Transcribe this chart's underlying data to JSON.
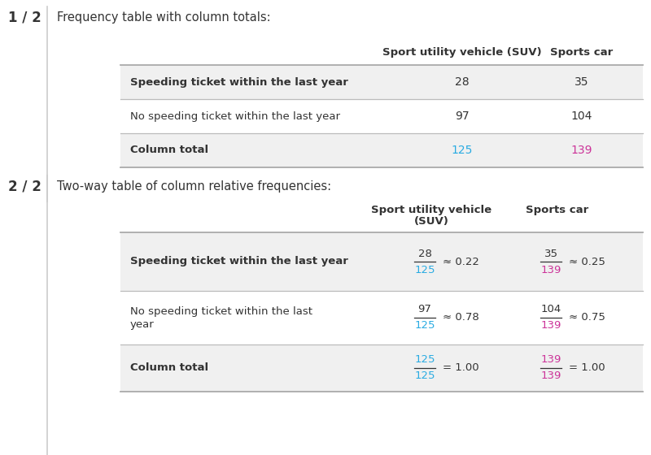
{
  "title1": "1 / 2",
  "title2": "2 / 2",
  "subtitle1": "Frequency table with column totals:",
  "subtitle2": "Two-way table of column relative frequencies:",
  "col_headers1": [
    "Sport utility vehicle (SUV)",
    "Sports car"
  ],
  "col_headers2_line1": "Sport utility vehicle",
  "col_headers2_line2": "(SUV)",
  "col_header2_sc": "Sports car",
  "row_labels1": [
    "Speeding ticket within the last year",
    "No speeding ticket within the last year",
    "Column total"
  ],
  "row_labels2_line1": [
    "Speeding ticket within the last year",
    "No speeding ticket within the last",
    "Column total"
  ],
  "row_labels2_line2": [
    "",
    "year",
    ""
  ],
  "t1_vals": [
    [
      "28",
      "35"
    ],
    [
      "97",
      "104"
    ],
    [
      "125",
      "139"
    ]
  ],
  "blue": "#29ABE2",
  "pink": "#CC3399",
  "dark": "#333333",
  "gray_bg": "#F0F0F0",
  "white_bg": "#FFFFFF",
  "divider_color": "#BBBBBB",
  "bold_rows1": [
    true,
    false,
    true
  ],
  "bold_rows2": [
    true,
    false,
    true
  ],
  "t1_col1_colors": [
    "#333333",
    "#333333",
    "#29ABE2"
  ],
  "t1_col2_colors": [
    "#333333",
    "#333333",
    "#CC3399"
  ],
  "label_fs": 9.5,
  "header_fs": 9.5,
  "data_fs": 10,
  "title_fs": 12,
  "sub_fs": 10.5
}
